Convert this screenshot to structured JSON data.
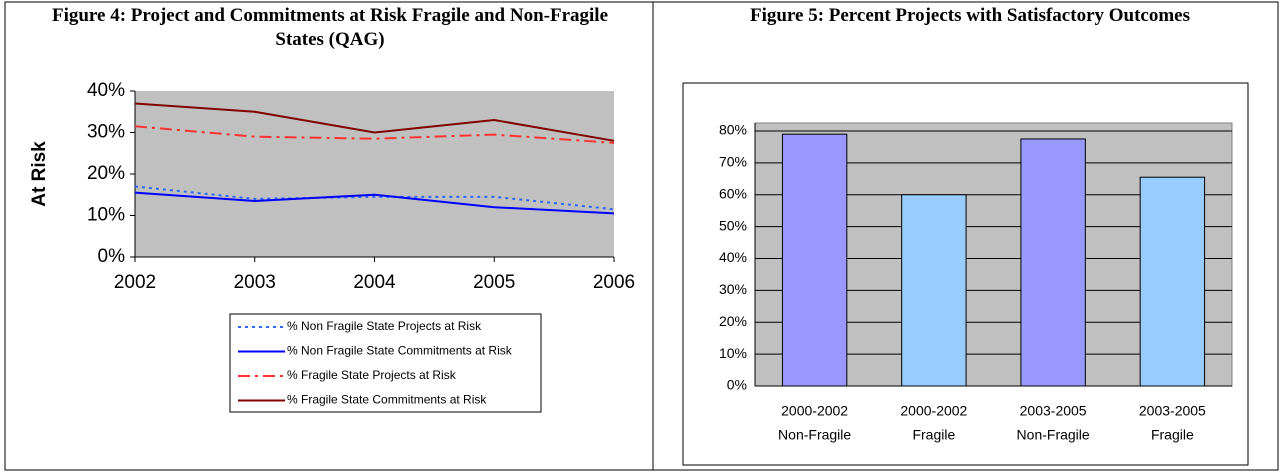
{
  "chart_data": [
    {
      "type": "line",
      "title": "Figure 4: Project and Commitments at Risk Fragile and Non-Fragile States (QAG)",
      "y_label": "At Risk",
      "x": [
        2002,
        2003,
        2004,
        2005,
        2006
      ],
      "xlim": [
        2002,
        2006
      ],
      "xticks": [
        2002,
        2003,
        2004,
        2005,
        2006
      ],
      "ylim": [
        0,
        40
      ],
      "yticks": [
        {
          "value": 0,
          "label": "0%"
        },
        {
          "value": 10,
          "label": "10%"
        },
        {
          "value": 20,
          "label": "20%"
        },
        {
          "value": 30,
          "label": "30%"
        },
        {
          "value": 40,
          "label": "40%"
        }
      ],
      "grid": false,
      "series": [
        {
          "name": "% Non Fragile State Projects at Risk",
          "color": "#3366ff",
          "dash": "dotted",
          "values": [
            17,
            14,
            14.5,
            14.5,
            11.5
          ]
        },
        {
          "name": "% Non Fragile State Commitments at Risk",
          "color": "#0000ff",
          "dash": "solid",
          "values": [
            15.5,
            13.5,
            15,
            12,
            10.5
          ]
        },
        {
          "name": "% Fragile State Projects at Risk",
          "color": "#ff3333",
          "dash": "dash-dot",
          "values": [
            31.5,
            29,
            28.5,
            29.5,
            27.5
          ]
        },
        {
          "name": "% Fragile State Commitments at Risk",
          "color": "#800000",
          "dash": "solid",
          "values": [
            37,
            35,
            30,
            33,
            28
          ]
        }
      ]
    },
    {
      "type": "bar",
      "title": "Figure 5: Percent Projects with Satisfactory Outcomes",
      "categories": [
        [
          "2000-2002",
          "Non-Fragile"
        ],
        [
          "2000-2002",
          "Fragile"
        ],
        [
          "2003-2005",
          "Non-Fragile"
        ],
        [
          "2003-2005",
          "Fragile"
        ]
      ],
      "values": [
        79,
        60,
        77.5,
        65.5
      ],
      "colors": [
        "#9999ff",
        "#99ccff",
        "#9999ff",
        "#99ccff"
      ],
      "ylim": [
        0,
        80
      ],
      "yticks": [
        {
          "value": 0,
          "label": "0%"
        },
        {
          "value": 10,
          "label": "10%"
        },
        {
          "value": 20,
          "label": "20%"
        },
        {
          "value": 30,
          "label": "30%"
        },
        {
          "value": 40,
          "label": "40%"
        },
        {
          "value": 50,
          "label": "50%"
        },
        {
          "value": 60,
          "label": "60%"
        },
        {
          "value": 70,
          "label": "70%"
        },
        {
          "value": 80,
          "label": "80%"
        }
      ],
      "grid": true
    }
  ]
}
